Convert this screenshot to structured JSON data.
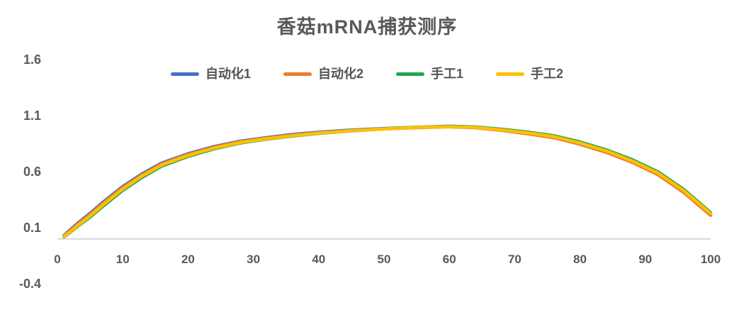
{
  "chart_data": {
    "type": "line",
    "title": "香菇mRNA捕获测序",
    "xlabel": "",
    "ylabel": "",
    "xlim": [
      0,
      100
    ],
    "ylim": [
      -0.4,
      1.6
    ],
    "grid": false,
    "legend_position": "top",
    "x_ticks": [
      0,
      10,
      20,
      30,
      40,
      50,
      60,
      70,
      80,
      90,
      100
    ],
    "y_ticks": [
      1.6,
      1.1,
      0.6,
      0.1,
      -0.4
    ],
    "x": [
      1,
      2,
      3,
      5,
      7,
      10,
      13,
      16,
      20,
      24,
      28,
      32,
      36,
      40,
      44,
      48,
      52,
      56,
      60,
      64,
      68,
      72,
      76,
      80,
      84,
      88,
      92,
      96,
      100
    ],
    "series": [
      {
        "name": "自动化1",
        "color": "#4472C4",
        "values": [
          0.03,
          0.082,
          0.135,
          0.228,
          0.328,
          0.468,
          0.582,
          0.678,
          0.76,
          0.824,
          0.872,
          0.904,
          0.932,
          0.952,
          0.968,
          0.98,
          0.99,
          0.997,
          1.003,
          0.995,
          0.974,
          0.945,
          0.91,
          0.853,
          0.782,
          0.692,
          0.582,
          0.422,
          0.222
        ]
      },
      {
        "name": "自动化2",
        "color": "#ED7D31",
        "values": [
          0.025,
          0.074,
          0.126,
          0.218,
          0.318,
          0.458,
          0.573,
          0.669,
          0.753,
          0.818,
          0.867,
          0.899,
          0.926,
          0.947,
          0.963,
          0.976,
          0.986,
          0.994,
          1.0,
          0.992,
          0.968,
          0.938,
          0.903,
          0.845,
          0.773,
          0.683,
          0.571,
          0.409,
          0.21
        ]
      },
      {
        "name": "手工1",
        "color": "#1FA84D",
        "values": [
          0.018,
          0.06,
          0.108,
          0.194,
          0.292,
          0.432,
          0.55,
          0.65,
          0.736,
          0.804,
          0.856,
          0.89,
          0.918,
          0.941,
          0.959,
          0.974,
          0.989,
          0.999,
          1.006,
          0.999,
          0.979,
          0.953,
          0.921,
          0.865,
          0.795,
          0.707,
          0.597,
          0.437,
          0.235
        ]
      },
      {
        "name": "手工2",
        "color": "#FFC000",
        "values": [
          0.02,
          0.064,
          0.114,
          0.204,
          0.304,
          0.444,
          0.562,
          0.66,
          0.744,
          0.81,
          0.86,
          0.893,
          0.921,
          0.943,
          0.96,
          0.975,
          0.987,
          0.997,
          1.001,
          0.995,
          0.973,
          0.946,
          0.913,
          0.856,
          0.786,
          0.696,
          0.586,
          0.426,
          0.226
        ]
      }
    ],
    "style": {
      "background": "#ffffff",
      "axis_line_color": "#d9d9d9",
      "tick_label_color": "#595959",
      "title_color": "#595959",
      "legend_text_color": "#555555"
    }
  }
}
